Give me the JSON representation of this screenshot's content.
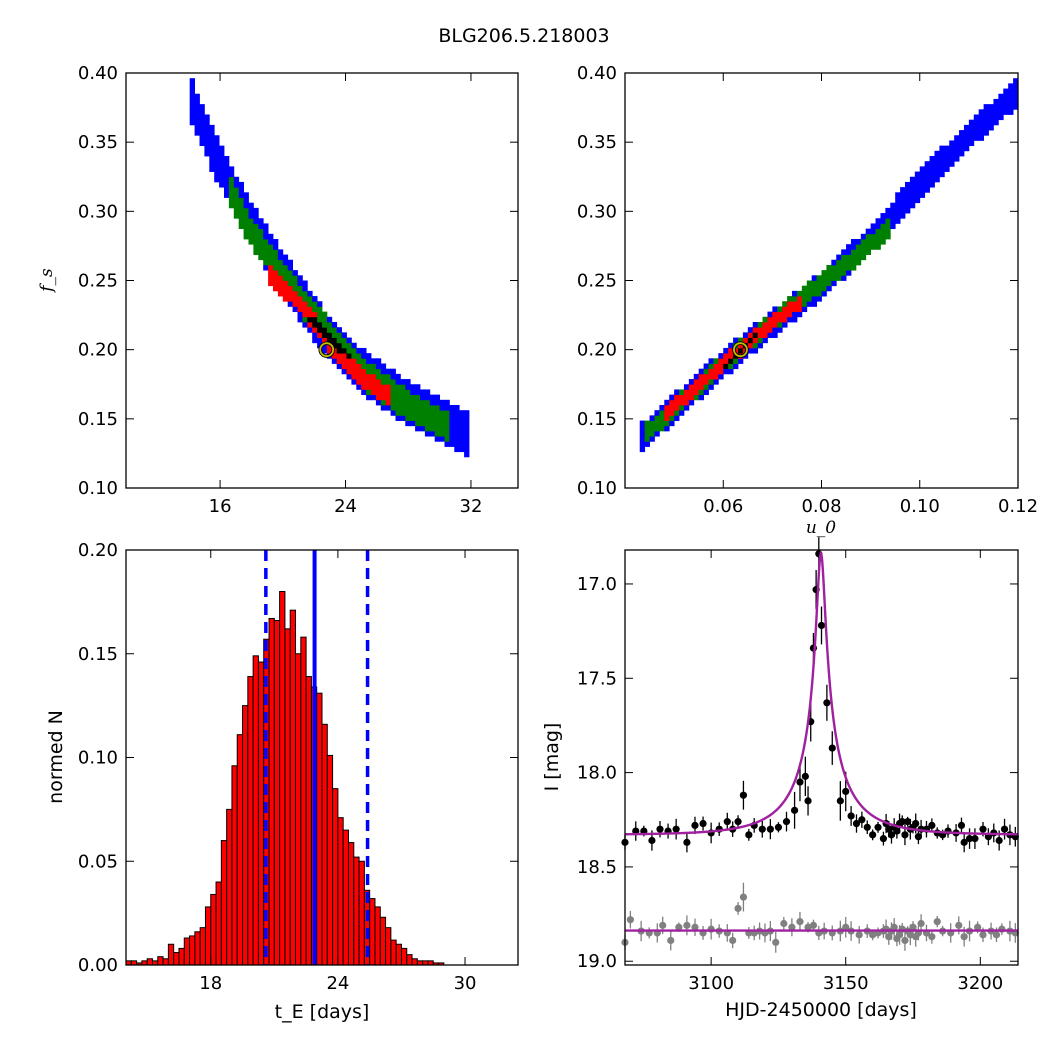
{
  "figure": {
    "title": "BLG206.5.218003"
  },
  "colors": {
    "blue": "#0000ff",
    "green": "#008000",
    "red": "#ff0000",
    "black": "#000000",
    "best": "#bfbf00",
    "model": "#a020a0",
    "resid": "#808080"
  },
  "chart_data": [
    {
      "type": "heatmap",
      "panel": "top-left",
      "xlabel": "",
      "ylabel": "f_s",
      "xlim": [
        10,
        35
      ],
      "ylim": [
        0.1,
        0.4
      ],
      "xticks": [
        "16",
        "24",
        "32"
      ],
      "yticks": [
        "0.10",
        "0.15",
        "0.20",
        "0.25",
        "0.30",
        "0.35",
        "0.40"
      ],
      "best_fit": {
        "x": 22.8,
        "y": 0.2
      },
      "confidence_regions": [
        {
          "level": "outer",
          "color": "blue",
          "band": 0.016,
          "points": [
            [
              14.0,
              0.385
            ],
            [
              15.5,
              0.345
            ],
            [
              17.5,
              0.3
            ],
            [
              20.0,
              0.255
            ],
            [
              22.5,
              0.215
            ],
            [
              25.0,
              0.185
            ],
            [
              27.5,
              0.165
            ],
            [
              30.0,
              0.15
            ],
            [
              32.0,
              0.137
            ]
          ]
        },
        {
          "level": "middle",
          "color": "green",
          "band": 0.011,
          "points": [
            [
              16.5,
              0.318
            ],
            [
              18.0,
              0.285
            ],
            [
              20.5,
              0.245
            ],
            [
              23.0,
              0.21
            ],
            [
              25.5,
              0.18
            ],
            [
              28.0,
              0.16
            ],
            [
              30.5,
              0.145
            ]
          ]
        },
        {
          "level": "inner",
          "color": "red",
          "band": 0.007,
          "points": [
            [
              19.0,
              0.255
            ],
            [
              21.0,
              0.235
            ],
            [
              23.0,
              0.205
            ],
            [
              25.0,
              0.18
            ],
            [
              27.0,
              0.165
            ]
          ]
        },
        {
          "level": "core",
          "color": "black",
          "band": 0.003,
          "points": [
            [
              21.5,
              0.225
            ],
            [
              23.0,
              0.208
            ],
            [
              24.5,
              0.193
            ]
          ]
        }
      ]
    },
    {
      "type": "heatmap",
      "panel": "top-right",
      "xlabel": "u_0",
      "ylabel": "",
      "xlim": [
        0.04,
        0.12
      ],
      "ylim": [
        0.1,
        0.4
      ],
      "xticks": [
        "0.06",
        "0.08",
        "0.10",
        "0.12"
      ],
      "yticks": [
        "0.10",
        "0.15",
        "0.20",
        "0.25",
        "0.30",
        "0.35",
        "0.40"
      ],
      "best_fit": {
        "x": 0.0635,
        "y": 0.2
      },
      "confidence_regions": [
        {
          "level": "outer",
          "color": "blue",
          "band": 0.01,
          "points": [
            [
              0.0435,
              0.137
            ],
            [
              0.06,
              0.19
            ],
            [
              0.08,
              0.247
            ],
            [
              0.09,
              0.28
            ],
            [
              0.1,
              0.32
            ],
            [
              0.11,
              0.355
            ],
            [
              0.1195,
              0.385
            ]
          ]
        },
        {
          "level": "middle",
          "color": "green",
          "band": 0.007,
          "points": [
            [
              0.0445,
              0.14
            ],
            [
              0.06,
              0.19
            ],
            [
              0.075,
              0.235
            ],
            [
              0.085,
              0.262
            ],
            [
              0.094,
              0.288
            ]
          ]
        },
        {
          "level": "inner",
          "color": "red",
          "band": 0.005,
          "points": [
            [
              0.048,
              0.153
            ],
            [
              0.06,
              0.19
            ],
            [
              0.07,
              0.22
            ],
            [
              0.076,
              0.235
            ]
          ]
        },
        {
          "level": "core",
          "color": "black",
          "band": 0.002,
          "points": [
            [
              0.0605,
              0.188
            ],
            [
              0.0665,
              0.21
            ]
          ]
        }
      ]
    },
    {
      "type": "bar",
      "panel": "bottom-left",
      "xlabel": "t_E [days]",
      "ylabel": "normed N",
      "xlim": [
        14,
        32.5
      ],
      "ylim": [
        0.0,
        0.2
      ],
      "xticks": [
        "18",
        "24",
        "30"
      ],
      "yticks": [
        "0.00",
        "0.05",
        "0.10",
        "0.15",
        "0.20"
      ],
      "bin_start": 14.0,
      "bin_width": 0.25,
      "values": [
        0.002,
        0.002,
        0.001,
        0.002,
        0.003,
        0.002,
        0.004,
        0.003,
        0.01,
        0.006,
        0.008,
        0.013,
        0.014,
        0.016,
        0.018,
        0.028,
        0.034,
        0.04,
        0.06,
        0.075,
        0.096,
        0.111,
        0.125,
        0.139,
        0.149,
        0.146,
        0.157,
        0.167,
        0.166,
        0.18,
        0.162,
        0.171,
        0.15,
        0.158,
        0.139,
        0.134,
        0.131,
        0.116,
        0.101,
        0.085,
        0.071,
        0.065,
        0.059,
        0.052,
        0.05,
        0.036,
        0.032,
        0.028,
        0.023,
        0.018,
        0.012,
        0.01,
        0.008,
        0.005,
        0.003,
        0.002,
        0.002,
        0.002,
        0.001,
        0.001
      ],
      "median": 22.9,
      "interval": [
        20.6,
        25.4
      ]
    },
    {
      "type": "scatter",
      "panel": "bottom-right",
      "xlabel": "HJD-2450000 [days]",
      "ylabel": "I [mag]",
      "xlim": [
        3068,
        3214
      ],
      "ylim": [
        19.02,
        16.82
      ],
      "xticks": [
        "3100",
        "3150",
        "3200"
      ],
      "yticks": [
        "17.0",
        "17.5",
        "18.0",
        "18.5",
        "19.0"
      ],
      "model": {
        "baseline": 18.33,
        "t0": 3140.8,
        "tE": 23.0,
        "u0": 0.0635,
        "fs": 0.2
      },
      "series": [
        {
          "name": "",
          "color": "black",
          "points": [
            [
              3068,
              18.37
            ],
            [
              3072,
              18.31
            ],
            [
              3075,
              18.31
            ],
            [
              3078,
              18.36
            ],
            [
              3081,
              18.3
            ],
            [
              3084,
              18.31
            ],
            [
              3087,
              18.3
            ],
            [
              3091,
              18.37
            ],
            [
              3094,
              18.28
            ],
            [
              3097,
              18.27
            ],
            [
              3100,
              18.32
            ],
            [
              3103,
              18.3
            ],
            [
              3106,
              18.26
            ],
            [
              3108,
              18.3
            ],
            [
              3110,
              18.26
            ],
            [
              3112,
              18.12
            ],
            [
              3114,
              18.33
            ],
            [
              3116,
              18.28
            ],
            [
              3119,
              18.3
            ],
            [
              3122,
              18.3
            ],
            [
              3125,
              18.29
            ],
            [
              3128,
              18.26
            ],
            [
              3131,
              18.2
            ],
            [
              3133,
              18.05
            ],
            [
              3135,
              18.02
            ],
            [
              3136,
              18.15
            ],
            [
              3137,
              17.73
            ],
            [
              3138,
              17.34
            ],
            [
              3139,
              17.03
            ],
            [
              3140,
              16.84
            ],
            [
              3141,
              17.22
            ],
            [
              3143,
              17.63
            ],
            [
              3145,
              17.87
            ],
            [
              3148,
              18.15
            ],
            [
              3150,
              18.1
            ],
            [
              3152,
              18.23
            ],
            [
              3154,
              18.27
            ],
            [
              3156,
              18.25
            ],
            [
              3158,
              18.29
            ],
            [
              3160,
              18.33
            ],
            [
              3162,
              18.29
            ],
            [
              3164,
              18.35
            ],
            [
              3165,
              18.27
            ],
            [
              3166,
              18.3
            ],
            [
              3167,
              18.33
            ],
            [
              3168,
              18.29
            ],
            [
              3169,
              18.31
            ],
            [
              3170,
              18.27
            ],
            [
              3171,
              18.26
            ],
            [
              3172,
              18.33
            ],
            [
              3173,
              18.26
            ],
            [
              3174,
              18.3
            ],
            [
              3175,
              18.29
            ],
            [
              3176,
              18.27
            ],
            [
              3177,
              18.34
            ],
            [
              3178,
              18.3
            ],
            [
              3180,
              18.3
            ],
            [
              3182,
              18.28
            ],
            [
              3184,
              18.32
            ],
            [
              3186,
              18.33
            ],
            [
              3188,
              18.31
            ],
            [
              3191,
              18.32
            ],
            [
              3193,
              18.28
            ],
            [
              3194,
              18.37
            ],
            [
              3196,
              18.35
            ],
            [
              3198,
              18.35
            ],
            [
              3201,
              18.3
            ],
            [
              3203,
              18.34
            ],
            [
              3205,
              18.32
            ],
            [
              3207,
              18.36
            ],
            [
              3209,
              18.3
            ],
            [
              3211,
              18.33
            ],
            [
              3213,
              18.34
            ]
          ]
        },
        {
          "name": "",
          "color": "resid",
          "points": [
            [
              3068,
              18.9
            ],
            [
              3070,
              18.78
            ],
            [
              3074,
              18.84
            ],
            [
              3077,
              18.85
            ],
            [
              3080,
              18.85
            ],
            [
              3082,
              18.81
            ],
            [
              3085,
              18.89
            ],
            [
              3088,
              18.82
            ],
            [
              3091,
              18.81
            ],
            [
              3094,
              18.82
            ],
            [
              3097,
              18.85
            ],
            [
              3100,
              18.83
            ],
            [
              3103,
              18.84
            ],
            [
              3106,
              18.85
            ],
            [
              3108,
              18.89
            ],
            [
              3110,
              18.72
            ],
            [
              3112,
              18.66
            ],
            [
              3114,
              18.85
            ],
            [
              3116,
              18.85
            ],
            [
              3118,
              18.84
            ],
            [
              3120,
              18.85
            ],
            [
              3122,
              18.84
            ],
            [
              3124,
              18.9
            ],
            [
              3127,
              18.8
            ],
            [
              3130,
              18.82
            ],
            [
              3133,
              18.79
            ],
            [
              3136,
              18.82
            ],
            [
              3138,
              18.81
            ],
            [
              3140,
              18.85
            ],
            [
              3142,
              18.84
            ],
            [
              3145,
              18.85
            ],
            [
              3148,
              18.84
            ],
            [
              3150,
              18.82
            ],
            [
              3152,
              18.84
            ],
            [
              3155,
              18.86
            ],
            [
              3158,
              18.84
            ],
            [
              3160,
              18.86
            ],
            [
              3162,
              18.85
            ],
            [
              3164,
              18.84
            ],
            [
              3165,
              18.83
            ],
            [
              3166,
              18.87
            ],
            [
              3167,
              18.84
            ],
            [
              3168,
              18.82
            ],
            [
              3169,
              18.88
            ],
            [
              3170,
              18.86
            ],
            [
              3171,
              18.83
            ],
            [
              3172,
              18.89
            ],
            [
              3173,
              18.84
            ],
            [
              3174,
              18.86
            ],
            [
              3175,
              18.82
            ],
            [
              3176,
              18.87
            ],
            [
              3177,
              18.85
            ],
            [
              3178,
              18.8
            ],
            [
              3180,
              18.85
            ],
            [
              3182,
              18.87
            ],
            [
              3184,
              18.79
            ],
            [
              3186,
              18.84
            ],
            [
              3189,
              18.85
            ],
            [
              3192,
              18.81
            ],
            [
              3194,
              18.87
            ],
            [
              3196,
              18.84
            ],
            [
              3199,
              18.82
            ],
            [
              3201,
              18.86
            ],
            [
              3204,
              18.84
            ],
            [
              3206,
              18.86
            ],
            [
              3208,
              18.83
            ],
            [
              3211,
              18.84
            ],
            [
              3213,
              18.85
            ]
          ]
        }
      ]
    }
  ]
}
